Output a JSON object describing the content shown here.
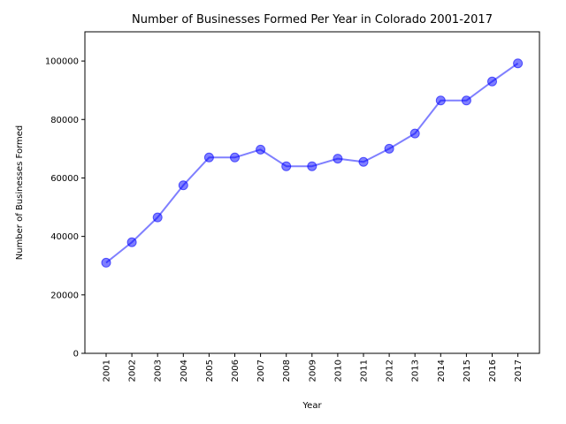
{
  "chart_data": {
    "type": "line",
    "title": "Number of Businesses Formed Per Year in Colorado 2001-2017",
    "xlabel": "Year",
    "ylabel": "Number of Businesses Formed",
    "categories": [
      "2001",
      "2002",
      "2003",
      "2004",
      "2005",
      "2006",
      "2007",
      "2008",
      "2009",
      "2010",
      "2011",
      "2012",
      "2013",
      "2014",
      "2015",
      "2016",
      "2017"
    ],
    "series": [
      {
        "values": [
          31000,
          38000,
          46500,
          57500,
          67000,
          67000,
          69700,
          64000,
          64000,
          66600,
          65500,
          70000,
          75200,
          86500,
          86500,
          93000,
          99200
        ]
      }
    ],
    "ylim": [
      0,
      110000
    ],
    "yticks": [
      0,
      20000,
      40000,
      60000,
      80000,
      100000
    ],
    "ytick_labels": [
      "0",
      "20000",
      "40000",
      "60000",
      "80000",
      "100000"
    ],
    "grid": false,
    "legend": "none",
    "colors": {
      "line": "#0000ff",
      "marker_fill": "#0000ff",
      "marker_edge": "#0000ff",
      "axis": "#000000"
    }
  }
}
